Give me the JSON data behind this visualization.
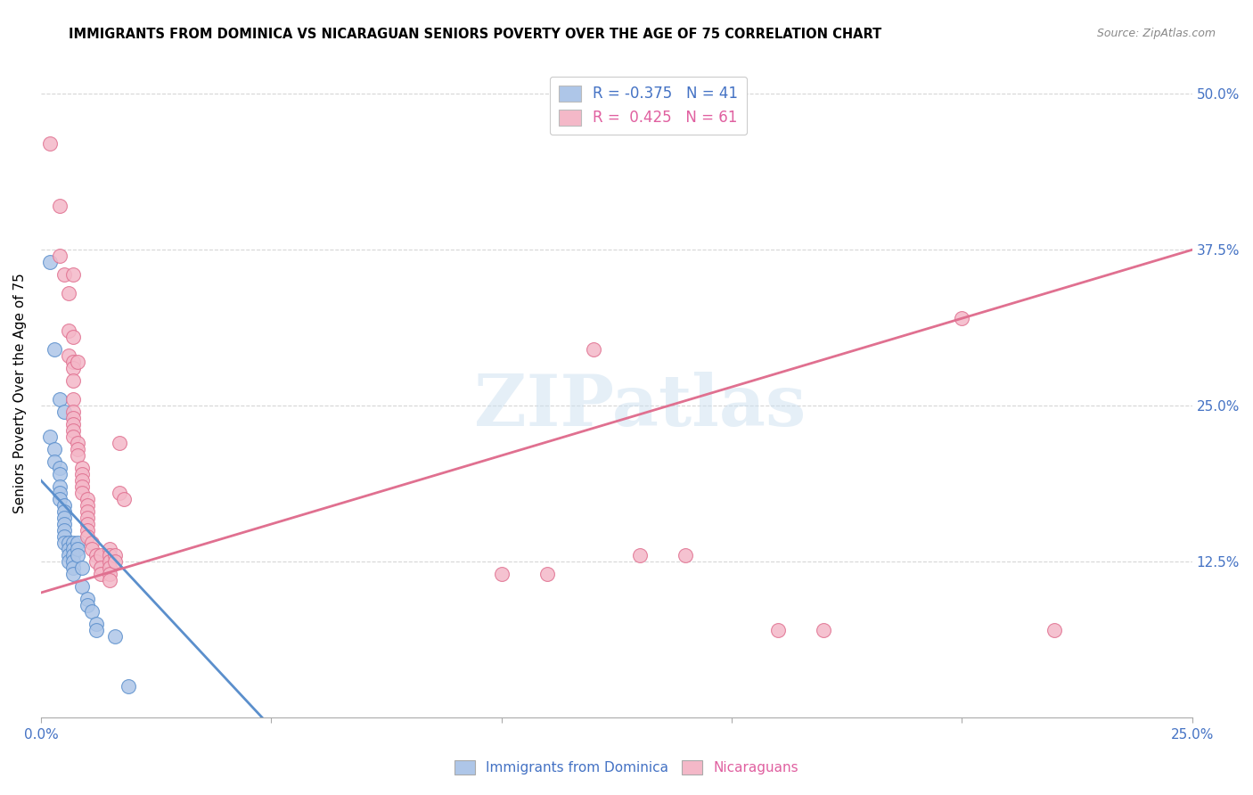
{
  "title": "IMMIGRANTS FROM DOMINICA VS NICARAGUAN SENIORS POVERTY OVER THE AGE OF 75 CORRELATION CHART",
  "source": "Source: ZipAtlas.com",
  "ylabel": "Seniors Poverty Over the Age of 75",
  "xlim": [
    0.0,
    0.25
  ],
  "ylim": [
    0.0,
    0.52
  ],
  "xtick_labels": [
    "0.0%",
    "",
    "",
    "",
    "",
    "25.0%"
  ],
  "xtick_vals": [
    0.0,
    0.05,
    0.1,
    0.15,
    0.2,
    0.25
  ],
  "ytick_vals_right": [
    0.125,
    0.25,
    0.375,
    0.5
  ],
  "ytick_labels_right": [
    "12.5%",
    "25.0%",
    "37.5%",
    "50.0%"
  ],
  "legend_R1": "-0.375",
  "legend_N1": "41",
  "legend_R2": "0.425",
  "legend_N2": "61",
  "color_blue": "#aec6e8",
  "color_pink": "#f4b8c8",
  "color_blue_line": "#5b8fcc",
  "color_pink_line": "#e07090",
  "color_blue_text": "#4472c4",
  "color_pink_text": "#e060a0",
  "watermark": "ZIPatlas",
  "scatter_blue": [
    [
      0.002,
      0.365
    ],
    [
      0.003,
      0.295
    ],
    [
      0.004,
      0.255
    ],
    [
      0.005,
      0.245
    ],
    [
      0.002,
      0.225
    ],
    [
      0.003,
      0.215
    ],
    [
      0.003,
      0.205
    ],
    [
      0.004,
      0.2
    ],
    [
      0.004,
      0.195
    ],
    [
      0.004,
      0.185
    ],
    [
      0.004,
      0.18
    ],
    [
      0.004,
      0.175
    ],
    [
      0.005,
      0.17
    ],
    [
      0.005,
      0.165
    ],
    [
      0.005,
      0.16
    ],
    [
      0.005,
      0.155
    ],
    [
      0.005,
      0.15
    ],
    [
      0.005,
      0.145
    ],
    [
      0.005,
      0.14
    ],
    [
      0.006,
      0.14
    ],
    [
      0.006,
      0.135
    ],
    [
      0.006,
      0.13
    ],
    [
      0.006,
      0.125
    ],
    [
      0.007,
      0.14
    ],
    [
      0.007,
      0.135
    ],
    [
      0.007,
      0.13
    ],
    [
      0.007,
      0.125
    ],
    [
      0.007,
      0.12
    ],
    [
      0.007,
      0.115
    ],
    [
      0.008,
      0.14
    ],
    [
      0.008,
      0.135
    ],
    [
      0.008,
      0.13
    ],
    [
      0.009,
      0.12
    ],
    [
      0.009,
      0.105
    ],
    [
      0.01,
      0.095
    ],
    [
      0.01,
      0.09
    ],
    [
      0.011,
      0.085
    ],
    [
      0.012,
      0.075
    ],
    [
      0.012,
      0.07
    ],
    [
      0.016,
      0.065
    ],
    [
      0.019,
      0.025
    ]
  ],
  "scatter_pink": [
    [
      0.002,
      0.46
    ],
    [
      0.004,
      0.41
    ],
    [
      0.004,
      0.37
    ],
    [
      0.005,
      0.355
    ],
    [
      0.006,
      0.34
    ],
    [
      0.006,
      0.31
    ],
    [
      0.006,
      0.29
    ],
    [
      0.007,
      0.285
    ],
    [
      0.007,
      0.28
    ],
    [
      0.007,
      0.355
    ],
    [
      0.007,
      0.305
    ],
    [
      0.007,
      0.27
    ],
    [
      0.007,
      0.255
    ],
    [
      0.007,
      0.245
    ],
    [
      0.007,
      0.24
    ],
    [
      0.007,
      0.235
    ],
    [
      0.007,
      0.23
    ],
    [
      0.007,
      0.225
    ],
    [
      0.008,
      0.285
    ],
    [
      0.008,
      0.22
    ],
    [
      0.008,
      0.215
    ],
    [
      0.008,
      0.21
    ],
    [
      0.009,
      0.2
    ],
    [
      0.009,
      0.195
    ],
    [
      0.009,
      0.19
    ],
    [
      0.009,
      0.185
    ],
    [
      0.009,
      0.18
    ],
    [
      0.01,
      0.175
    ],
    [
      0.01,
      0.17
    ],
    [
      0.01,
      0.165
    ],
    [
      0.01,
      0.16
    ],
    [
      0.01,
      0.155
    ],
    [
      0.01,
      0.15
    ],
    [
      0.01,
      0.145
    ],
    [
      0.011,
      0.14
    ],
    [
      0.011,
      0.135
    ],
    [
      0.012,
      0.13
    ],
    [
      0.012,
      0.125
    ],
    [
      0.013,
      0.13
    ],
    [
      0.013,
      0.12
    ],
    [
      0.013,
      0.115
    ],
    [
      0.015,
      0.135
    ],
    [
      0.015,
      0.13
    ],
    [
      0.015,
      0.125
    ],
    [
      0.015,
      0.12
    ],
    [
      0.015,
      0.115
    ],
    [
      0.015,
      0.11
    ],
    [
      0.016,
      0.13
    ],
    [
      0.016,
      0.125
    ],
    [
      0.017,
      0.22
    ],
    [
      0.017,
      0.18
    ],
    [
      0.018,
      0.175
    ],
    [
      0.1,
      0.115
    ],
    [
      0.11,
      0.115
    ],
    [
      0.12,
      0.295
    ],
    [
      0.13,
      0.13
    ],
    [
      0.14,
      0.13
    ],
    [
      0.2,
      0.32
    ],
    [
      0.16,
      0.07
    ],
    [
      0.17,
      0.07
    ],
    [
      0.22,
      0.07
    ]
  ],
  "blue_line_x": [
    0.0,
    0.048
  ],
  "blue_line_y": [
    0.19,
    0.0
  ],
  "pink_line_x": [
    0.0,
    0.25
  ],
  "pink_line_y": [
    0.1,
    0.375
  ],
  "figsize": [
    14.06,
    8.92
  ],
  "dpi": 100
}
